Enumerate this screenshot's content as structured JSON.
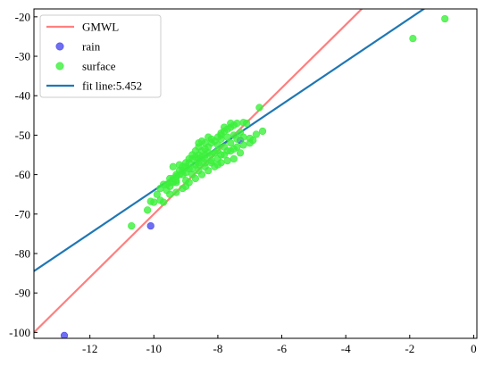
{
  "chart_data": {
    "type": "scatter",
    "title": "",
    "xlabel": "",
    "ylabel": "",
    "xlim": [
      -13.75,
      0.1
    ],
    "ylim": [
      -101.5,
      -18
    ],
    "xticks": [
      -12,
      -10,
      -8,
      -6,
      -4,
      -2,
      0
    ],
    "yticks": [
      -100,
      -90,
      -80,
      -70,
      -60,
      -50,
      -40,
      -30,
      -20
    ],
    "legend_position": "top-left",
    "legend": [
      {
        "label": "GMWL",
        "kind": "line",
        "color": "#ff7f7f"
      },
      {
        "label": "rain",
        "kind": "marker",
        "color": "#4a4aef"
      },
      {
        "label": "surface",
        "kind": "marker",
        "color": "#3cf03c"
      },
      {
        "label": "fit line:5.452",
        "kind": "line",
        "color": "#1f77b4"
      }
    ],
    "lines": [
      {
        "name": "GMWL",
        "color": "#ff7f7f",
        "slope": 8,
        "intercept": 10
      },
      {
        "name": "fit line:5.452",
        "color": "#1f77b4",
        "slope": 5.452,
        "intercept": -9.5
      }
    ],
    "series": [
      {
        "name": "rain",
        "color": "#4a4aef",
        "points": [
          [
            -12.8,
            -100.8
          ],
          [
            -10.1,
            -73
          ],
          [
            -7.3,
            -51.3
          ]
        ]
      },
      {
        "name": "surface",
        "color": "#3cf03c",
        "points": [
          [
            -0.9,
            -20.5
          ],
          [
            -1.9,
            -25.5
          ],
          [
            -6.7,
            -43
          ],
          [
            -6.6,
            -49
          ],
          [
            -6.8,
            -49.8
          ],
          [
            -6.9,
            -51.3
          ],
          [
            -10.7,
            -73
          ],
          [
            -10.2,
            -69
          ],
          [
            -10.0,
            -67
          ],
          [
            -10.1,
            -66.8
          ],
          [
            -9.8,
            -66.5
          ],
          [
            -9.7,
            -67
          ],
          [
            -9.8,
            -63.5
          ],
          [
            -9.6,
            -64
          ],
          [
            -9.5,
            -62
          ],
          [
            -9.4,
            -61
          ],
          [
            -9.3,
            -60.5
          ],
          [
            -9.2,
            -60
          ],
          [
            -9.1,
            -59
          ],
          [
            -9.0,
            -58
          ],
          [
            -8.9,
            -57
          ],
          [
            -8.8,
            -56
          ],
          [
            -8.7,
            -55.5
          ],
          [
            -8.6,
            -55
          ],
          [
            -8.5,
            -54
          ],
          [
            -8.4,
            -53.5
          ],
          [
            -8.3,
            -53
          ],
          [
            -8.2,
            -52
          ],
          [
            -8.1,
            -51.5
          ],
          [
            -8.0,
            -50.5
          ],
          [
            -7.9,
            -50
          ],
          [
            -7.8,
            -49
          ],
          [
            -7.7,
            -48.5
          ],
          [
            -7.6,
            -48
          ],
          [
            -7.5,
            -47.5
          ],
          [
            -7.4,
            -47
          ],
          [
            -7.2,
            -46.8
          ],
          [
            -7.1,
            -47
          ],
          [
            -7.6,
            -47
          ],
          [
            -7.8,
            -48
          ],
          [
            -7.3,
            -49.3
          ],
          [
            -7.9,
            -51
          ],
          [
            -8.2,
            -51
          ],
          [
            -8.4,
            -52
          ],
          [
            -8.6,
            -53
          ],
          [
            -8.7,
            -54
          ],
          [
            -8.8,
            -55
          ],
          [
            -8.9,
            -56
          ],
          [
            -9.0,
            -57
          ],
          [
            -9.1,
            -58
          ],
          [
            -9.2,
            -59
          ],
          [
            -9.3,
            -60
          ],
          [
            -9.4,
            -62
          ],
          [
            -9.5,
            -63
          ],
          [
            -9.6,
            -62.5
          ],
          [
            -9.3,
            -62
          ],
          [
            -9.0,
            -61.5
          ],
          [
            -8.8,
            -60
          ],
          [
            -8.6,
            -59
          ],
          [
            -8.4,
            -58
          ],
          [
            -8.2,
            -57
          ],
          [
            -8.0,
            -56
          ],
          [
            -7.8,
            -55
          ],
          [
            -7.6,
            -54
          ],
          [
            -7.4,
            -53
          ],
          [
            -7.2,
            -52.5
          ],
          [
            -7.0,
            -52
          ],
          [
            -7.3,
            -54.5
          ],
          [
            -7.5,
            -56
          ],
          [
            -7.7,
            -56.5
          ],
          [
            -7.9,
            -57
          ],
          [
            -8.1,
            -58
          ],
          [
            -8.3,
            -59
          ],
          [
            -8.5,
            -60
          ],
          [
            -8.7,
            -61
          ],
          [
            -8.9,
            -62
          ],
          [
            -9.1,
            -63.5
          ],
          [
            -9.3,
            -64.5
          ],
          [
            -9.5,
            -65
          ],
          [
            -9.0,
            -63
          ],
          [
            -8.6,
            -57
          ],
          [
            -8.4,
            -56
          ],
          [
            -8.2,
            -55
          ],
          [
            -8.0,
            -54
          ],
          [
            -7.8,
            -53
          ],
          [
            -7.6,
            -52
          ],
          [
            -7.4,
            -51
          ],
          [
            -7.5,
            -50
          ],
          [
            -7.7,
            -50.5
          ],
          [
            -8.0,
            -52.5
          ],
          [
            -8.3,
            -54.5
          ],
          [
            -8.5,
            -55.5
          ],
          [
            -8.7,
            -57.5
          ],
          [
            -8.9,
            -58.5
          ],
          [
            -9.1,
            -60
          ],
          [
            -9.3,
            -61.5
          ],
          [
            -9.5,
            -61
          ],
          [
            -9.7,
            -62.5
          ],
          [
            -9.9,
            -65
          ],
          [
            -8.5,
            -51.5
          ],
          [
            -8.3,
            -50.5
          ],
          [
            -7.9,
            -49.5
          ],
          [
            -7.2,
            -50.5
          ],
          [
            -7.0,
            -50.8
          ],
          [
            -8.6,
            -52
          ],
          [
            -8.4,
            -55
          ],
          [
            -8.2,
            -56.5
          ],
          [
            -9.2,
            -57.5
          ],
          [
            -9.0,
            -59.5
          ],
          [
            -8.8,
            -58.5
          ],
          [
            -8.6,
            -57.5
          ],
          [
            -8.4,
            -57
          ],
          [
            -8.1,
            -54.5
          ],
          [
            -7.9,
            -55
          ],
          [
            -7.7,
            -54
          ],
          [
            -7.5,
            -53.5
          ],
          [
            -8.0,
            -57.5
          ],
          [
            -8.6,
            -56
          ],
          [
            -9.4,
            -58
          ]
        ]
      }
    ]
  }
}
